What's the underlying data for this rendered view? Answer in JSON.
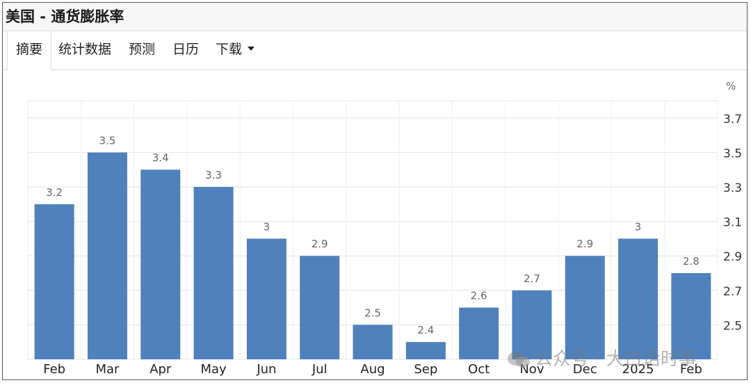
{
  "page": {
    "title": "美国 - 通货膨胀率",
    "tabs": [
      {
        "label": "摘要",
        "active": true
      },
      {
        "label": "统计数据",
        "active": false
      },
      {
        "label": "预测",
        "active": false
      },
      {
        "label": "日历",
        "active": false
      },
      {
        "label": "下载",
        "active": false,
        "dropdown": true
      }
    ],
    "watermark": "公众号 · 大白话时事"
  },
  "colors": {
    "bar": "#4f81bd",
    "grid": "#e6e6e6",
    "label": "#666666"
  },
  "chart_data": {
    "type": "bar",
    "categories": [
      "Feb",
      "Mar",
      "Apr",
      "May",
      "Jun",
      "Jul",
      "Aug",
      "Sep",
      "Oct",
      "Nov",
      "Dec",
      "2025",
      "Feb"
    ],
    "values": [
      3.2,
      3.5,
      3.4,
      3.3,
      3.0,
      2.9,
      2.5,
      2.4,
      2.6,
      2.7,
      2.9,
      3.0,
      2.8
    ],
    "data_labels": [
      "3.2",
      "3.5",
      "3.4",
      "3.3",
      "3",
      "2.9",
      "2.5",
      "2.4",
      "2.6",
      "2.7",
      "2.9",
      "3",
      "2.8"
    ],
    "yunit": "%",
    "yticks": [
      "2.5",
      "2.7",
      "2.9",
      "3.1",
      "3.3",
      "3.5",
      "3.7"
    ],
    "ylim": [
      2.3,
      3.8
    ],
    "yaxis_side": "right",
    "grid": true
  }
}
